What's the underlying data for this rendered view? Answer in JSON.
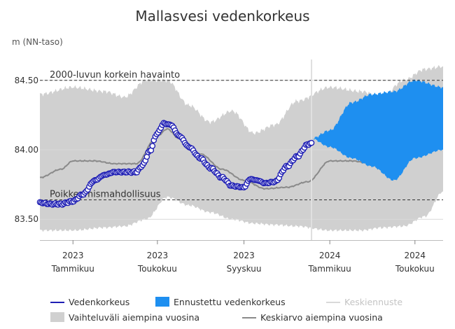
{
  "chart_data": {
    "type": "line",
    "title": "Mallasvesi vedenkorkeus",
    "ylabel": "m (NN-taso)",
    "ylim": [
      83.35,
      84.65
    ],
    "yticks": [
      83.5,
      84.0,
      84.5
    ],
    "ytick_labels": [
      "83.50",
      "84.00",
      "84.50"
    ],
    "x_domain": [
      "2022-11-15",
      "2024-06-10"
    ],
    "today": "2023-12-06",
    "xticks": [
      {
        "date": "2023-01-01",
        "year": "2023",
        "month": "Tammikuu"
      },
      {
        "date": "2023-05-01",
        "year": "2023",
        "month": "Toukokuu"
      },
      {
        "date": "2023-09-01",
        "year": "2023",
        "month": "Syyskuu"
      },
      {
        "date": "2024-01-01",
        "year": "2024",
        "month": "Tammikuu"
      },
      {
        "date": "2024-05-01",
        "year": "2024",
        "month": "Toukokuu"
      }
    ],
    "reference_lines": [
      {
        "label": "2000-luvun korkein havainto",
        "y": 84.5
      },
      {
        "label": "Poikkeamismahdollisuus",
        "y": 83.64
      }
    ],
    "series": [
      {
        "name": "Vedenkorkeus",
        "color": "#1f1fb4",
        "points": [
          [
            "2022-11-15",
            83.62
          ],
          [
            "2022-12-01",
            83.61
          ],
          [
            "2022-12-15",
            83.61
          ],
          [
            "2023-01-01",
            83.63
          ],
          [
            "2023-01-15",
            83.68
          ],
          [
            "2023-02-01",
            83.78
          ],
          [
            "2023-02-15",
            83.82
          ],
          [
            "2023-03-01",
            83.84
          ],
          [
            "2023-03-15",
            83.84
          ],
          [
            "2023-04-01",
            83.84
          ],
          [
            "2023-04-10",
            83.89
          ],
          [
            "2023-04-20",
            83.99
          ],
          [
            "2023-05-01",
            84.12
          ],
          [
            "2023-05-10",
            84.19
          ],
          [
            "2023-05-20",
            84.18
          ],
          [
            "2023-06-01",
            84.1
          ],
          [
            "2023-06-15",
            84.02
          ],
          [
            "2023-07-01",
            83.94
          ],
          [
            "2023-07-15",
            83.87
          ],
          [
            "2023-08-01",
            83.8
          ],
          [
            "2023-08-15",
            83.74
          ],
          [
            "2023-09-01",
            83.73
          ],
          [
            "2023-09-10",
            83.79
          ],
          [
            "2023-09-20",
            83.78
          ],
          [
            "2023-10-01",
            83.76
          ],
          [
            "2023-10-15",
            83.77
          ],
          [
            "2023-11-01",
            83.88
          ],
          [
            "2023-11-15",
            83.95
          ],
          [
            "2023-12-01",
            84.04
          ],
          [
            "2023-12-06",
            84.05
          ]
        ]
      },
      {
        "name": "Ennustettu vedenkorkeus",
        "color": "#1e8ff0",
        "upper": [
          [
            "2023-12-06",
            84.08
          ],
          [
            "2024-01-01",
            84.14
          ],
          [
            "2024-02-01",
            84.34
          ],
          [
            "2024-03-01",
            84.4
          ],
          [
            "2024-04-01",
            84.42
          ],
          [
            "2024-05-01",
            84.5
          ],
          [
            "2024-06-10",
            84.45
          ]
        ],
        "lower": [
          [
            "2023-12-06",
            84.08
          ],
          [
            "2024-01-01",
            84.02
          ],
          [
            "2024-02-01",
            83.94
          ],
          [
            "2024-03-01",
            83.88
          ],
          [
            "2024-04-01",
            83.78
          ],
          [
            "2024-05-01",
            83.94
          ],
          [
            "2024-06-10",
            84.0
          ]
        ]
      },
      {
        "name": "Keskiennuste",
        "color": "#d9d9d9"
      },
      {
        "name": "Vaihteluväli aiempina vuosina",
        "color": "#d0d0d0",
        "upper": [
          [
            "2022-11-15",
            84.4
          ],
          [
            "2023-01-01",
            84.45
          ],
          [
            "2023-02-15",
            84.42
          ],
          [
            "2023-03-15",
            84.38
          ],
          [
            "2023-04-15",
            84.5
          ],
          [
            "2023-05-15",
            84.5
          ],
          [
            "2023-06-15",
            84.32
          ],
          [
            "2023-07-15",
            84.2
          ],
          [
            "2023-08-15",
            84.28
          ],
          [
            "2023-09-15",
            84.12
          ],
          [
            "2023-10-15",
            84.18
          ],
          [
            "2023-11-15",
            84.35
          ],
          [
            "2024-01-01",
            84.45
          ],
          [
            "2024-02-15",
            84.42
          ],
          [
            "2024-03-15",
            84.38
          ],
          [
            "2024-04-15",
            84.5
          ],
          [
            "2024-05-15",
            84.58
          ],
          [
            "2024-06-10",
            84.6
          ]
        ],
        "lower": [
          [
            "2022-11-15",
            83.42
          ],
          [
            "2023-01-01",
            83.42
          ],
          [
            "2023-02-15",
            83.44
          ],
          [
            "2023-03-15",
            83.45
          ],
          [
            "2023-04-15",
            83.5
          ],
          [
            "2023-05-15",
            83.66
          ],
          [
            "2023-06-15",
            83.6
          ],
          [
            "2023-07-15",
            83.55
          ],
          [
            "2023-08-15",
            83.5
          ],
          [
            "2023-09-15",
            83.47
          ],
          [
            "2023-10-15",
            83.46
          ],
          [
            "2023-11-15",
            83.45
          ],
          [
            "2024-01-01",
            83.42
          ],
          [
            "2024-02-15",
            83.42
          ],
          [
            "2024-03-15",
            83.44
          ],
          [
            "2024-04-15",
            83.45
          ],
          [
            "2024-05-15",
            83.52
          ],
          [
            "2024-06-10",
            83.7
          ]
        ]
      },
      {
        "name": "Keskiarvo aiempina vuosina",
        "color": "#8a8a8a",
        "points": [
          [
            "2022-11-15",
            83.8
          ],
          [
            "2022-12-15",
            83.86
          ],
          [
            "2023-01-01",
            83.92
          ],
          [
            "2023-02-01",
            83.92
          ],
          [
            "2023-03-01",
            83.9
          ],
          [
            "2023-04-01",
            83.9
          ],
          [
            "2023-05-01",
            84.1
          ],
          [
            "2023-05-15",
            84.15
          ],
          [
            "2023-06-01",
            84.08
          ],
          [
            "2023-07-01",
            83.97
          ],
          [
            "2023-08-01",
            83.86
          ],
          [
            "2023-09-01",
            83.78
          ],
          [
            "2023-10-01",
            83.72
          ],
          [
            "2023-11-01",
            83.73
          ],
          [
            "2023-12-01",
            83.77
          ],
          [
            "2024-01-01",
            83.92
          ],
          [
            "2024-02-01",
            83.92
          ],
          [
            "2024-03-01",
            83.9
          ],
          [
            "2024-04-01",
            83.9
          ],
          [
            "2024-05-01",
            84.1
          ],
          [
            "2024-05-15",
            84.15
          ],
          [
            "2024-06-10",
            84.1
          ]
        ]
      }
    ]
  },
  "legend": {
    "items": [
      {
        "label": "Vedenkorkeus",
        "icon": "line",
        "color": "#1f1fb4",
        "dim": false
      },
      {
        "label": "Ennustettu vedenkorkeus",
        "icon": "area",
        "color": "#1e8ff0",
        "dim": false
      },
      {
        "label": "Keskiennuste",
        "icon": "line",
        "color": "#d9d9d9",
        "dim": true
      },
      {
        "label": "Vaihteluväli aiempina vuosina",
        "icon": "area",
        "color": "#d0d0d0",
        "dim": false
      },
      {
        "label": "Keskiarvo aiempina vuosina",
        "icon": "line",
        "color": "#8a8a8a",
        "dim": false
      }
    ]
  }
}
